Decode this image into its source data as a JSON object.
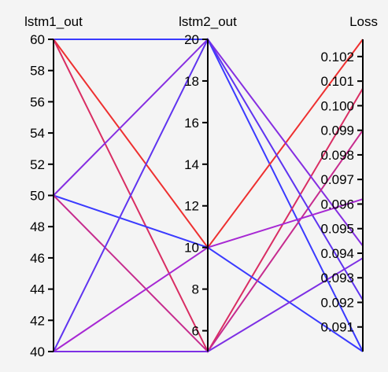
{
  "chart_data": {
    "type": "parallel_coordinates",
    "axes": [
      {
        "name": "lstm1_out",
        "domain": [
          40,
          60
        ],
        "ticks": [
          40,
          42,
          44,
          46,
          48,
          50,
          52,
          54,
          56,
          58,
          60
        ]
      },
      {
        "name": "lstm2_out",
        "domain": [
          5,
          20
        ],
        "ticks": [
          6,
          8,
          10,
          12,
          14,
          16,
          18,
          20
        ]
      },
      {
        "name": "Loss",
        "domain": [
          0.09,
          0.1027
        ],
        "ticks": [
          0.091,
          0.092,
          0.093,
          0.094,
          0.095,
          0.096,
          0.097,
          0.098,
          0.099,
          0.1,
          0.101,
          0.102
        ]
      }
    ],
    "tick_format": {
      "lstm1_out": [
        "40",
        "42",
        "44",
        "46",
        "48",
        "50",
        "52",
        "54",
        "56",
        "58",
        "60"
      ],
      "lstm2_out": [
        "6",
        "8",
        "10",
        "12",
        "14",
        "16",
        "18",
        "20"
      ],
      "Loss": [
        "0.091",
        "0.092",
        "0.093",
        "0.094",
        "0.095",
        "0.096",
        "0.097",
        "0.098",
        "0.099",
        "0.100",
        "0.101",
        "0.102"
      ]
    },
    "color_scale": {
      "low": "#3a3aff",
      "high": "#ee3030",
      "by": "Loss"
    },
    "series": [
      {
        "values": [
          60,
          20,
          0.09
        ]
      },
      {
        "values": [
          60,
          10,
          0.1027
        ]
      },
      {
        "values": [
          60,
          5,
          0.1007
        ]
      },
      {
        "values": [
          50,
          20,
          0.0943
        ]
      },
      {
        "values": [
          50,
          10,
          0.09
        ]
      },
      {
        "values": [
          50,
          5,
          0.099
        ]
      },
      {
        "values": [
          40,
          20,
          0.0921
        ]
      },
      {
        "values": [
          40,
          10,
          0.0962
        ]
      },
      {
        "values": [
          40,
          5,
          0.0938
        ]
      }
    ]
  }
}
